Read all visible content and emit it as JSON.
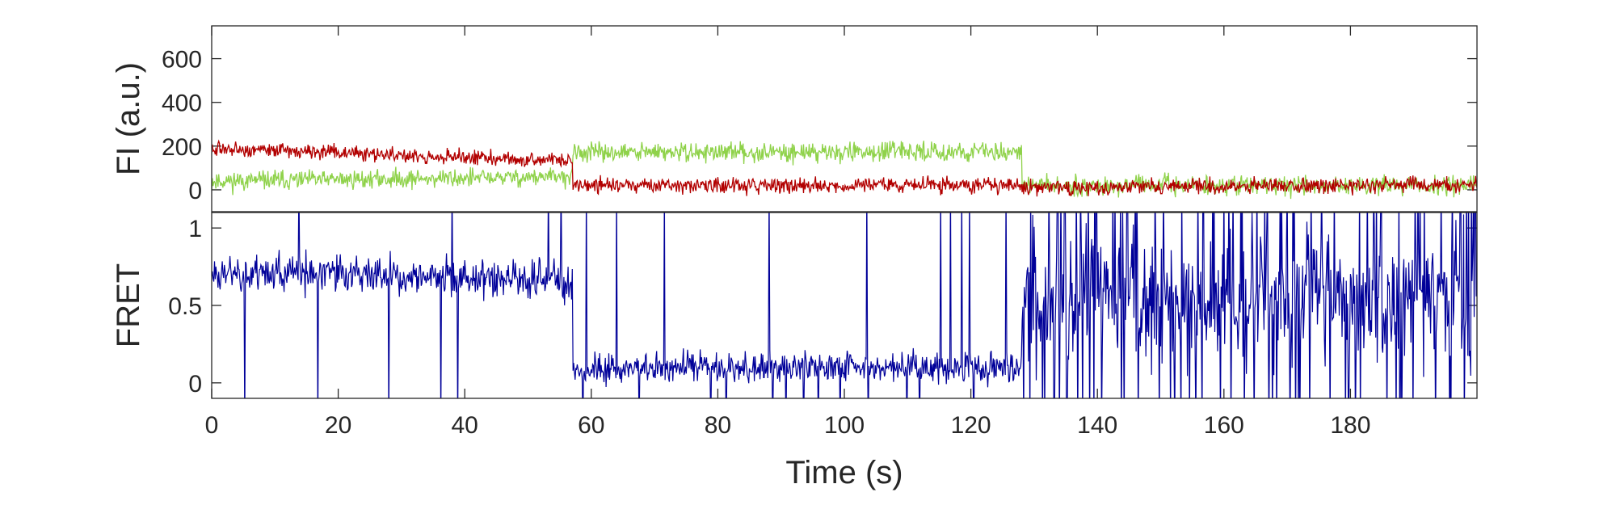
{
  "colors": {
    "acceptor": "#b20000",
    "donor": "#8fd24a",
    "fret": "#000099",
    "axis": "#262626"
  },
  "chart_data": [
    {
      "type": "line",
      "ylabel": "FI (a.u.)",
      "xlim": [
        0,
        200
      ],
      "ylim": [
        -100,
        750
      ],
      "yticks": [
        0,
        200,
        400,
        600
      ],
      "ytick_labels": [
        "0",
        "200",
        "400",
        "600"
      ],
      "noise_seed": 11,
      "series": [
        {
          "role": "donor",
          "color": "#8fd24a",
          "noise": 55,
          "segments": [
            {
              "x0": 0,
              "x1": 57,
              "y0": 40,
              "y1": 60
            },
            {
              "x0": 57,
              "x1": 128,
              "y0": 170,
              "y1": 175
            },
            {
              "x0": 128,
              "x1": 200,
              "y0": 20,
              "y1": 20
            }
          ]
        },
        {
          "role": "acceptor",
          "color": "#b20000",
          "noise": 45,
          "segments": [
            {
              "x0": 0,
              "x1": 57,
              "y0": 190,
              "y1": 130
            },
            {
              "x0": 57,
              "x1": 128,
              "y0": 20,
              "y1": 20
            },
            {
              "x0": 128,
              "x1": 200,
              "y0": 10,
              "y1": 25
            }
          ]
        }
      ]
    },
    {
      "type": "line",
      "ylabel": "FRET",
      "xlabel": "Time (s)",
      "xlim": [
        0,
        200
      ],
      "ylim": [
        -0.1,
        1.1
      ],
      "xticks": [
        0,
        20,
        40,
        60,
        80,
        100,
        120,
        140,
        160,
        180
      ],
      "xtick_labels": [
        "0",
        "20",
        "40",
        "60",
        "80",
        "100",
        "120",
        "140",
        "160",
        "180"
      ],
      "yticks": [
        0,
        0.5,
        1
      ],
      "ytick_labels": [
        "0",
        "0.5",
        "1"
      ],
      "noise_seed": 23,
      "series": [
        {
          "role": "FRET",
          "color": "#000099",
          "segments": [
            {
              "x0": 0,
              "x1": 57,
              "y0": 0.72,
              "y1": 0.66,
              "noise": 0.16,
              "spike_rate": 0.02
            },
            {
              "x0": 57,
              "x1": 128,
              "y0": 0.1,
              "y1": 0.1,
              "noise": 0.13,
              "spike_rate": 0.03
            },
            {
              "x0": 128,
              "x1": 200,
              "y0": 0.55,
              "y1": 0.55,
              "noise": 0.55,
              "spike_rate": 0.15
            }
          ]
        }
      ]
    }
  ]
}
